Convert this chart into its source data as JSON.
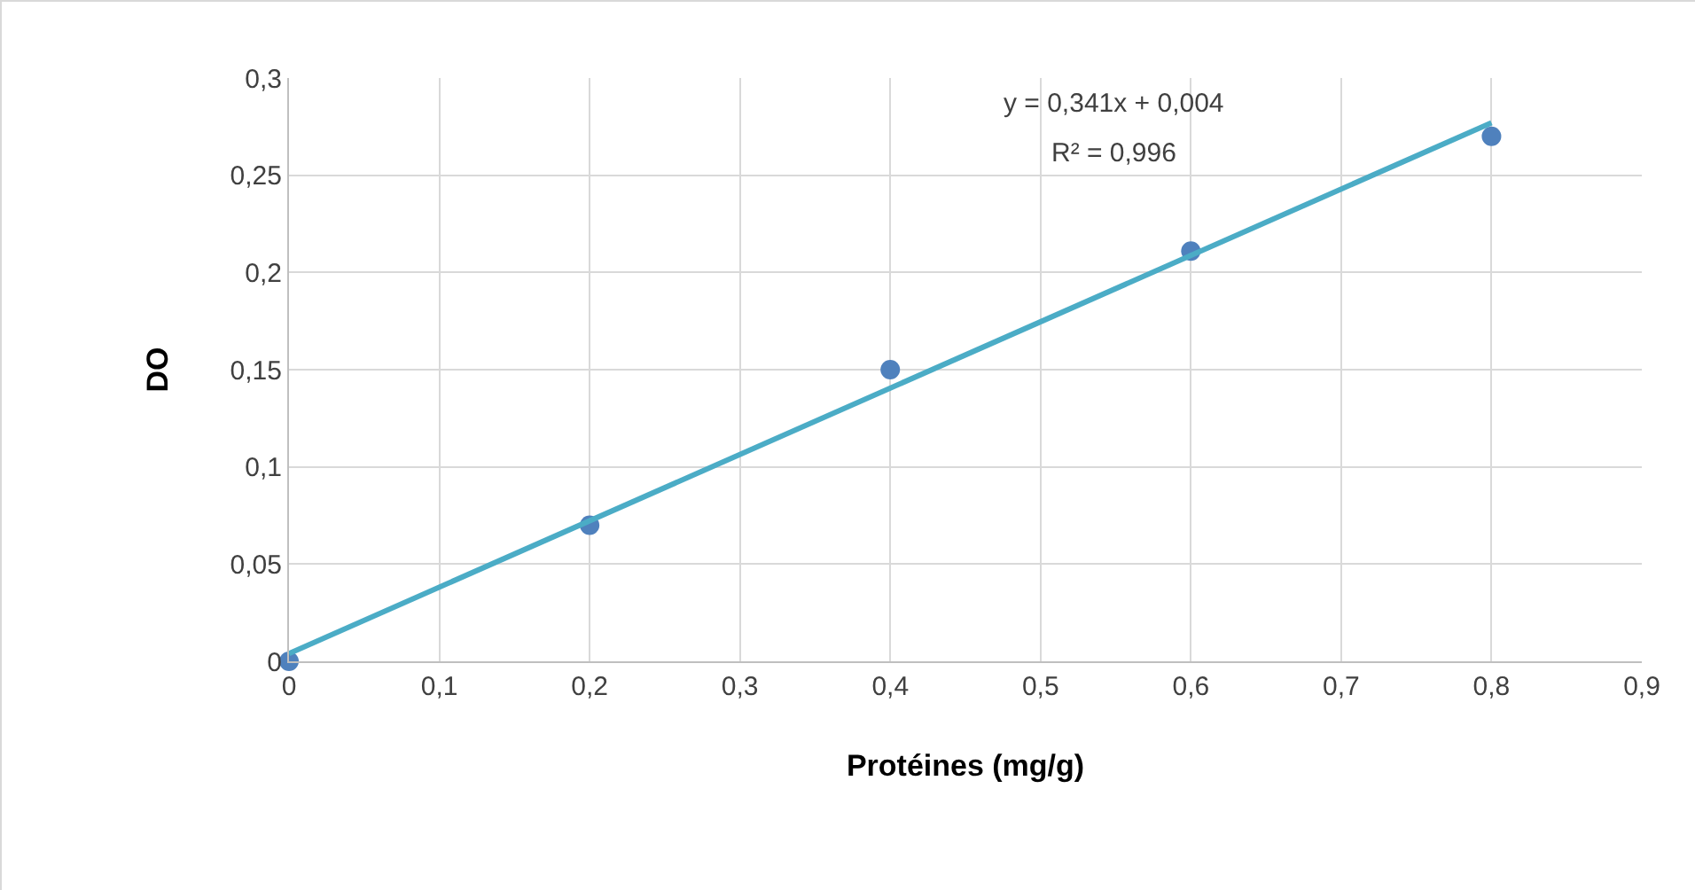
{
  "chart_data": {
    "type": "scatter",
    "xlabel": "Protéines (mg/g)",
    "ylabel": "DO",
    "x": [
      0,
      0.2,
      0.4,
      0.6,
      0.8
    ],
    "series": [
      {
        "type": "scatter",
        "color": "#4f81bd",
        "marker": "circle",
        "values": [
          0,
          0.07,
          0.15,
          0.211,
          0.27
        ]
      },
      {
        "type": "line",
        "color": "#4bacc6",
        "x": [
          0,
          0.8
        ],
        "values": [
          0.004,
          0.277
        ],
        "line_style": "solid"
      }
    ],
    "xlim": [
      0,
      0.9
    ],
    "xticks": [
      0,
      {
        "value": 0.1,
        "label": "0,1"
      },
      {
        "value": 0.2,
        "label": "0,2"
      },
      {
        "value": 0.3,
        "label": "0,3"
      },
      {
        "value": 0.4,
        "label": "0,4"
      },
      {
        "value": 0.5,
        "label": "0,5"
      },
      {
        "value": 0.6,
        "label": "0,6"
      },
      {
        "value": 0.7,
        "label": "0,7"
      },
      {
        "value": 0.8,
        "label": "0,8"
      },
      {
        "value": 0.9,
        "label": "0,9"
      }
    ],
    "ylim": [
      0,
      0.3
    ],
    "yticks": [
      0,
      {
        "value": 0.05,
        "label": "0,05"
      },
      {
        "value": 0.1,
        "label": "0,1"
      },
      {
        "value": 0.15,
        "label": "0,15"
      },
      {
        "value": 0.2,
        "label": "0,2"
      },
      {
        "value": 0.25,
        "label": "0,25"
      },
      {
        "value": 0.3,
        "label": "0,3"
      }
    ],
    "grid": true,
    "annotations": [
      "y = 0,341x + 0,004",
      "R² = 0,996"
    ]
  }
}
